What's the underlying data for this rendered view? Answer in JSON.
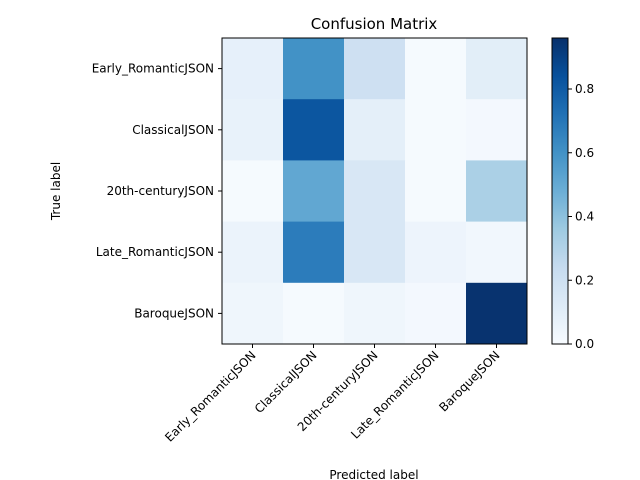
{
  "chart_data": {
    "type": "heatmap",
    "title": "Confusion Matrix",
    "xlabel": "Predicted label",
    "ylabel": "True label",
    "x_categories": [
      "Early_RomanticJSON",
      "ClassicalJSON",
      "20th-centuryJSON",
      "Late_RomanticJSON",
      "BaroqueJSON"
    ],
    "y_categories": [
      "Early_RomanticJSON",
      "ClassicalJSON",
      "20th-centuryJSON",
      "Late_RomanticJSON",
      "BaroqueJSON"
    ],
    "values": [
      [
        0.08,
        0.6,
        0.2,
        0.01,
        0.1
      ],
      [
        0.07,
        0.82,
        0.09,
        0.01,
        0.02
      ],
      [
        0.01,
        0.51,
        0.15,
        0.01,
        0.32
      ],
      [
        0.06,
        0.68,
        0.15,
        0.05,
        0.03
      ],
      [
        0.04,
        0.01,
        0.04,
        0.02,
        0.95
      ]
    ],
    "colormap": "Blues",
    "color_range": [
      0,
      0.96
    ],
    "colorbar_ticks": [
      0.0,
      0.2,
      0.4,
      0.6,
      0.8
    ],
    "colorbar_tick_labels": [
      "0.0",
      "0.2",
      "0.4",
      "0.6",
      "0.8"
    ]
  }
}
